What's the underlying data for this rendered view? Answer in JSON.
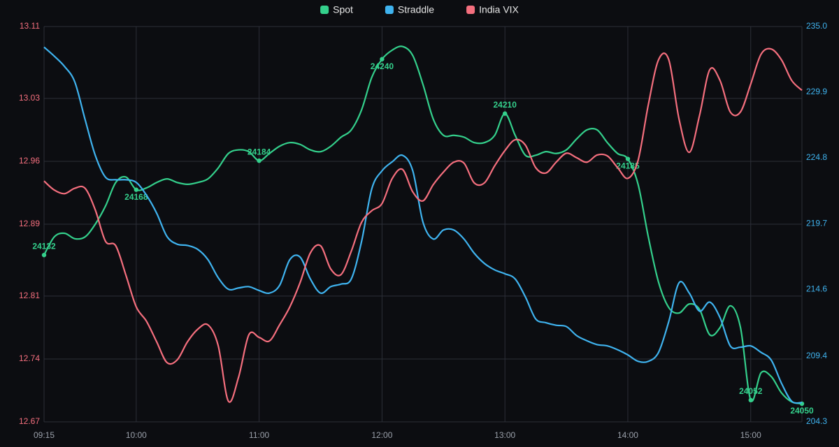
{
  "chart_data": {
    "type": "line",
    "legend": "top",
    "grid": true,
    "x": [
      "09:15",
      "09:20",
      "09:25",
      "09:30",
      "09:35",
      "09:40",
      "09:45",
      "09:50",
      "09:55",
      "10:00",
      "10:05",
      "10:10",
      "10:15",
      "10:20",
      "10:25",
      "10:30",
      "10:35",
      "10:40",
      "10:45",
      "10:50",
      "10:55",
      "11:00",
      "11:05",
      "11:10",
      "11:15",
      "11:20",
      "11:25",
      "11:30",
      "11:35",
      "11:40",
      "11:45",
      "11:50",
      "11:55",
      "12:00",
      "12:05",
      "12:10",
      "12:15",
      "12:20",
      "12:25",
      "12:30",
      "12:35",
      "12:40",
      "12:45",
      "12:50",
      "12:55",
      "13:00",
      "13:05",
      "13:10",
      "13:15",
      "13:20",
      "13:25",
      "13:30",
      "13:35",
      "13:40",
      "13:45",
      "13:50",
      "13:55",
      "14:00",
      "14:05",
      "14:10",
      "14:15",
      "14:20",
      "14:25",
      "14:30",
      "14:35",
      "14:40",
      "14:45",
      "14:50",
      "14:55",
      "15:00",
      "15:05",
      "15:10",
      "15:15",
      "15:20",
      "15:25"
    ],
    "xticks": [
      "09:15",
      "10:00",
      "11:00",
      "12:00",
      "13:00",
      "14:00",
      "15:00"
    ],
    "ylim": [
      12.67,
      13.11
    ],
    "yticks": [
      13.11,
      13.03,
      12.96,
      12.89,
      12.81,
      12.74,
      12.67
    ],
    "y2lim": [
      204.3,
      235.0
    ],
    "y2ticks": [
      {
        "value": 235.0,
        "label": "235.0"
      },
      229.9,
      224.8,
      219.7,
      214.6,
      209.4,
      204.3
    ],
    "y3lim": [
      24040,
      24258
    ],
    "series": [
      {
        "name": "Spot",
        "color": "#34d08c",
        "axis": "y3",
        "labeled_points": [
          0,
          9,
          21,
          33,
          45,
          57,
          69,
          74
        ],
        "values": [
          24132,
          24142,
          24144,
          24141,
          24142,
          24149,
          24159,
          24172,
          24175,
          24168,
          24169,
          24172,
          24174,
          24172,
          24171,
          24172,
          24174,
          24180,
          24188,
          24190,
          24189,
          24184,
          24188,
          24192,
          24194,
          24193,
          24190,
          24189,
          24192,
          24197,
          24201,
          24212,
          24230,
          24240,
          24245,
          24247,
          24242,
          24226,
          24207,
          24198,
          24198,
          24197,
          24194,
          24194,
          24198,
          24210,
          24198,
          24187,
          24187,
          24189,
          24188,
          24190,
          24196,
          24201,
          24201,
          24194,
          24188,
          24185,
          24171,
          24142,
          24117,
          24103,
          24100,
          24105,
          24102,
          24088,
          24092,
          24104,
          24092,
          24052,
          24067,
          24065,
          24056,
          24051,
          24050
        ]
      },
      {
        "name": "Straddle",
        "color": "#3fb3ef",
        "axis": "y2",
        "values": [
          233.4,
          232.7,
          231.9,
          230.7,
          227.8,
          225.0,
          223.3,
          223.1,
          223.1,
          222.9,
          221.9,
          220.5,
          218.7,
          218.1,
          218.0,
          217.7,
          216.9,
          215.5,
          214.6,
          214.7,
          214.8,
          214.5,
          214.3,
          214.9,
          216.9,
          217.1,
          215.4,
          214.3,
          214.8,
          215.0,
          215.4,
          218.3,
          222.4,
          223.8,
          224.5,
          225.0,
          223.8,
          219.8,
          218.5,
          219.2,
          219.2,
          218.5,
          217.4,
          216.6,
          216.1,
          215.8,
          215.4,
          214.0,
          212.3,
          212.0,
          211.8,
          211.7,
          211.0,
          210.6,
          210.3,
          210.2,
          209.9,
          209.5,
          209.0,
          209.0,
          209.7,
          212.1,
          215.1,
          214.3,
          212.9,
          213.6,
          212.4,
          210.2,
          210.1,
          210.2,
          209.7,
          209.1,
          207.3,
          205.9,
          205.8
        ]
      },
      {
        "name": "India VIX",
        "color": "#f56f7e",
        "axis": "y",
        "values": [
          12.938,
          12.928,
          12.924,
          12.93,
          12.93,
          12.906,
          12.871,
          12.866,
          12.833,
          12.798,
          12.782,
          12.759,
          12.736,
          12.739,
          12.759,
          12.773,
          12.778,
          12.755,
          12.693,
          12.72,
          12.767,
          12.764,
          12.76,
          12.778,
          12.798,
          12.825,
          12.858,
          12.866,
          12.84,
          12.834,
          12.86,
          12.892,
          12.905,
          12.913,
          12.941,
          12.951,
          12.926,
          12.916,
          12.934,
          12.948,
          12.959,
          12.958,
          12.936,
          12.936,
          12.955,
          12.972,
          12.984,
          12.978,
          12.953,
          12.947,
          12.959,
          12.969,
          12.964,
          12.959,
          12.967,
          12.966,
          12.953,
          12.941,
          12.961,
          13.023,
          13.073,
          13.073,
          13.007,
          12.97,
          13.011,
          13.062,
          13.05,
          13.015,
          13.015,
          13.046,
          13.079,
          13.085,
          13.073,
          13.05,
          13.039
        ]
      }
    ]
  }
}
